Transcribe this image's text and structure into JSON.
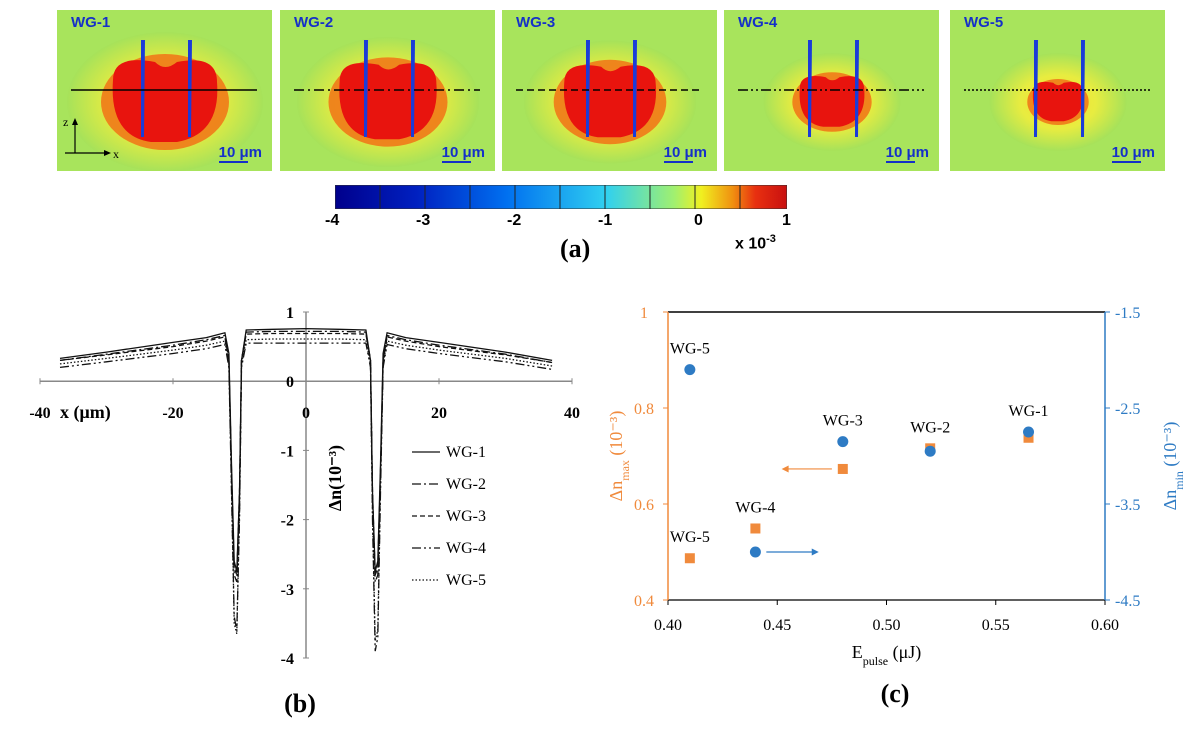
{
  "panel_a": {
    "label": "(a)",
    "maps": [
      {
        "name": "WG-1",
        "cut_style": "solid",
        "scale_text": "10 μm"
      },
      {
        "name": "WG-2",
        "cut_style": "dashdot",
        "scale_text": "10 μm"
      },
      {
        "name": "WG-3",
        "cut_style": "dash",
        "scale_text": "10 μm"
      },
      {
        "name": "WG-4",
        "cut_style": "dashdotdot",
        "scale_text": "10 μm"
      },
      {
        "name": "WG-5",
        "cut_style": "dot",
        "scale_text": "10 μm"
      }
    ],
    "axes_z": "z",
    "axes_x": "x",
    "colorbar": {
      "ticks": [
        "-4",
        "-3",
        "-2",
        "-1",
        "0",
        "1"
      ],
      "range": [
        -4,
        1
      ],
      "multiplier_text": "x 10",
      "multiplier_exp": "-3",
      "colors": [
        "#00008c",
        "#0030d0",
        "#0090f0",
        "#40e0e8",
        "#c8f060",
        "#f0f020",
        "#f08010",
        "#d81010"
      ]
    }
  },
  "chart_data": [
    {
      "type": "line",
      "panel_label": "(b)",
      "xlabel": "x (μm)",
      "ylabel": "Δn(10⁻³)",
      "xlim": [
        -40,
        40
      ],
      "ylim": [
        -4,
        1
      ],
      "xticks": [
        "-40",
        "-20",
        "0",
        "20",
        "40"
      ],
      "yticks": [
        "1",
        "0",
        "-1",
        "-2",
        "-3",
        "-4"
      ],
      "legend_position": "right",
      "series": [
        {
          "name": "WG-1",
          "dash": "solid",
          "x": [
            -37,
            -30,
            -20,
            -15,
            -12.2,
            -11.6,
            -11.2,
            -10.8,
            -10.4,
            -10,
            -9.7,
            -9,
            -5,
            0,
            5,
            9,
            9.7,
            10,
            10.4,
            10.8,
            11.2,
            11.6,
            12.2,
            15,
            20,
            30,
            37
          ],
          "y": [
            0.33,
            0.42,
            0.56,
            0.63,
            0.7,
            0.4,
            -1.2,
            -2.6,
            -2.75,
            -1.6,
            0.3,
            0.74,
            0.75,
            0.76,
            0.75,
            0.74,
            0.3,
            -1.6,
            -2.75,
            -2.6,
            -1.2,
            0.4,
            0.7,
            0.63,
            0.56,
            0.42,
            0.3
          ]
        },
        {
          "name": "WG-2",
          "dash": "dashdot",
          "x": [
            -37,
            -30,
            -20,
            -15,
            -12.2,
            -11.6,
            -11.2,
            -10.8,
            -10.4,
            -10,
            -9.7,
            -9,
            -5,
            0,
            5,
            9,
            9.7,
            10,
            10.4,
            10.8,
            11.2,
            11.6,
            12.2,
            15,
            20,
            30,
            37
          ],
          "y": [
            0.3,
            0.39,
            0.52,
            0.6,
            0.66,
            0.3,
            -1.4,
            -2.8,
            -2.9,
            -1.7,
            0.3,
            0.71,
            0.72,
            0.72,
            0.72,
            0.71,
            0.3,
            -1.7,
            -2.9,
            -2.8,
            -1.4,
            0.3,
            0.66,
            0.6,
            0.52,
            0.39,
            0.27
          ]
        },
        {
          "name": "WG-3",
          "dash": "dash",
          "x": [
            -37,
            -30,
            -20,
            -15,
            -12.2,
            -11.6,
            -11.2,
            -10.8,
            -10.4,
            -10,
            -9.7,
            -9,
            -5,
            0,
            5,
            9,
            9.7,
            10,
            10.4,
            10.8,
            11.2,
            11.6,
            12.2,
            15,
            20,
            30,
            37
          ],
          "y": [
            0.3,
            0.38,
            0.5,
            0.58,
            0.64,
            0.3,
            -1.3,
            -2.7,
            -2.8,
            -1.6,
            0.3,
            0.68,
            0.69,
            0.69,
            0.69,
            0.68,
            0.3,
            -1.6,
            -2.8,
            -2.7,
            -1.3,
            0.3,
            0.64,
            0.58,
            0.5,
            0.38,
            0.27
          ]
        },
        {
          "name": "WG-4",
          "dash": "dashdotdot",
          "x": [
            -37,
            -30,
            -20,
            -15,
            -12.2,
            -11.6,
            -11.2,
            -10.8,
            -10.4,
            -10,
            -9.7,
            -9,
            -5,
            0,
            5,
            9,
            9.7,
            10,
            10.4,
            10.8,
            11.2,
            11.6,
            12.2,
            15,
            20,
            30,
            37
          ],
          "y": [
            0.2,
            0.28,
            0.4,
            0.47,
            0.53,
            0.2,
            -1.6,
            -3.4,
            -3.6,
            -2.0,
            0.2,
            0.55,
            0.55,
            0.55,
            0.55,
            0.55,
            0.2,
            -2.0,
            -3.9,
            -3.7,
            -1.6,
            0.2,
            0.53,
            0.47,
            0.4,
            0.28,
            0.17
          ]
        },
        {
          "name": "WG-5",
          "dash": "dot",
          "x": [
            -37,
            -30,
            -20,
            -15,
            -12.2,
            -11.6,
            -11.2,
            -10.8,
            -10.4,
            -10,
            -9.7,
            -9,
            -5,
            0,
            5,
            9,
            9.7,
            10,
            10.4,
            10.8,
            11.2,
            11.6,
            12.2,
            15,
            20,
            30,
            37
          ],
          "y": [
            0.25,
            0.33,
            0.45,
            0.52,
            0.58,
            0.25,
            -1.5,
            -3.5,
            -3.65,
            -1.9,
            0.25,
            0.6,
            0.61,
            0.61,
            0.61,
            0.6,
            0.25,
            -1.9,
            -3.75,
            -3.6,
            -1.5,
            0.25,
            0.58,
            0.52,
            0.45,
            0.33,
            0.22
          ]
        }
      ]
    },
    {
      "type": "scatter",
      "panel_label": "(c)",
      "xlabel": "E",
      "xlabel_sub": "pulse",
      "xlabel_unit": " (μJ)",
      "ylabel_left": "Δn",
      "ylabel_left_sub": "max",
      "ylabel_left_unit": " (10⁻³)",
      "ylabel_right": "Δn",
      "ylabel_right_sub": "min",
      "ylabel_right_unit": " (10⁻³)",
      "xlim": [
        0.4,
        0.6
      ],
      "ylim_left": [
        0.4,
        1.0
      ],
      "ylim_right": [
        -4.5,
        -1.5
      ],
      "xticks": [
        "0.40",
        "0.45",
        "0.50",
        "0.55",
        "0.60"
      ],
      "yticks_left": [
        "1",
        "0.8",
        "0.6",
        "0.4"
      ],
      "yticks_right": [
        "-1.5",
        "-2.5",
        "-3.5",
        "-4.5"
      ],
      "colors": {
        "max": "#f08a3c",
        "min": "#2e7bc4"
      },
      "series": [
        {
          "name": "max",
          "marker": "square",
          "axis": "left",
          "x": [
            0.41,
            0.44,
            0.48,
            0.52,
            0.565
          ],
          "y": [
            0.487,
            0.549,
            0.673,
            0.716,
            0.738
          ]
        },
        {
          "name": "min",
          "marker": "circle",
          "axis": "right",
          "x": [
            0.41,
            0.44,
            0.48,
            0.52,
            0.565
          ],
          "y": [
            -2.1,
            -4.0,
            -2.85,
            -2.95,
            -2.75
          ]
        }
      ],
      "annotations": [
        {
          "text": "WG-5",
          "x": 0.41,
          "y": -2.1,
          "axis": "right"
        },
        {
          "text": "WG-5",
          "x": 0.41,
          "y": 0.487,
          "axis": "left"
        },
        {
          "text": "WG-4",
          "x": 0.44,
          "y": 0.549,
          "axis": "left"
        },
        {
          "text": "WG-3",
          "x": 0.48,
          "y": -2.85,
          "axis": "right"
        },
        {
          "text": "WG-2",
          "x": 0.52,
          "y": 0.716,
          "axis": "left"
        },
        {
          "text": "WG-1",
          "x": 0.565,
          "y": -2.75,
          "axis": "right"
        }
      ]
    }
  ]
}
